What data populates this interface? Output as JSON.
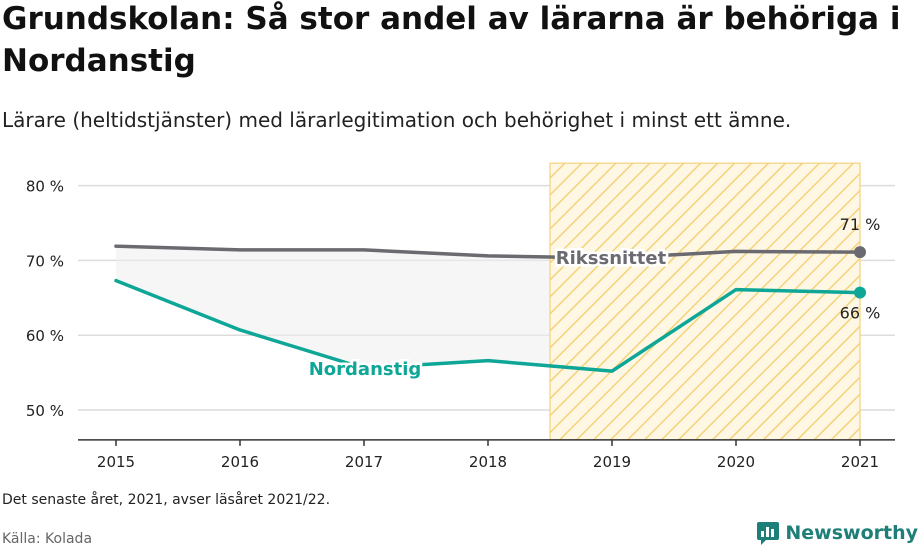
{
  "title": "Grundskolan: Så stor andel av lärarna är behöriga i Nordanstig",
  "subtitle": "Lärare (heltidstjänster) med lärarlegitimation och behörighet i minst ett ämne.",
  "note": "Det senaste året, 2021, avser läsåret 2021/22.",
  "source": "Källa: Kolada",
  "brand": {
    "name": "Newsworthy",
    "icon": "newsworthy-logo-icon"
  },
  "colors": {
    "national": "#6b6a70",
    "municipality": "#0ea696",
    "highlight": "#f5c542",
    "brand": "#1e7f78"
  },
  "chart_data": {
    "type": "line",
    "title": "Grundskolan: Så stor andel av lärarna är behöriga i Nordanstig",
    "x": [
      "2015",
      "2016",
      "2017",
      "2018",
      "2019",
      "2020",
      "2021"
    ],
    "series": [
      {
        "name": "Rikssnittet",
        "values": [
          71.9,
          71.4,
          71.4,
          70.6,
          70.3,
          71.2,
          71.1
        ],
        "color": "#6b6a70"
      },
      {
        "name": "Nordanstig",
        "values": [
          67.3,
          60.7,
          55.6,
          56.6,
          55.2,
          66.1,
          65.7
        ],
        "color": "#0ea696"
      }
    ],
    "ylim": [
      46,
      83
    ],
    "yticks": [
      50,
      60,
      70,
      80
    ],
    "ytick_labels": [
      "50 %",
      "60 %",
      "70 %",
      "80 %"
    ],
    "end_labels": [
      "71 %",
      "66 %"
    ],
    "highlight_range": [
      "2018.5",
      "2021"
    ],
    "grid": true,
    "legend": "inline labels"
  }
}
